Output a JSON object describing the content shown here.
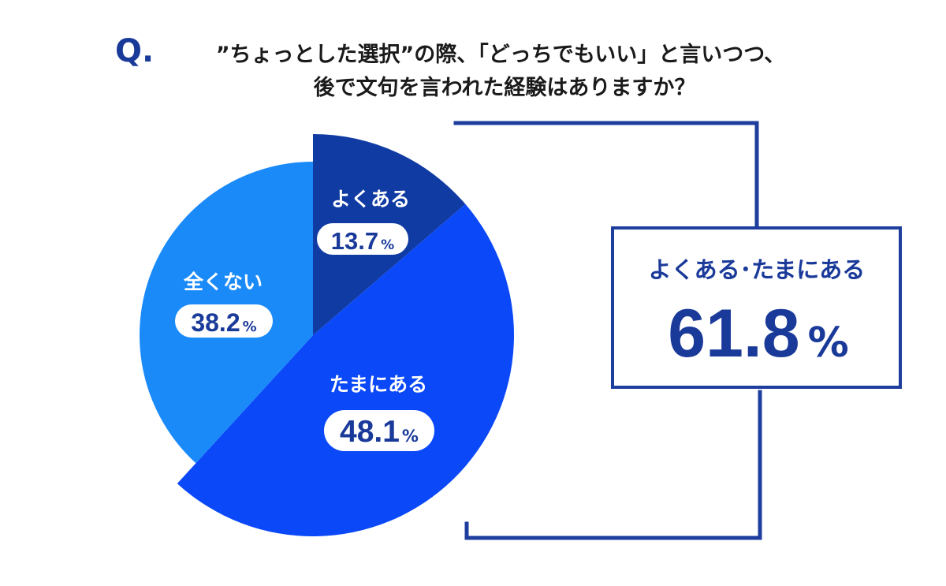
{
  "title": {
    "q_mark": "Q.",
    "line1": "”ちょっとした選択”の際、「どっちでもいい」と言いつつ、",
    "line2": "後で文句を言われた経験はありますか？"
  },
  "colors": {
    "dark": "#0F3BA3",
    "mid": "#0A48F8",
    "light": "#1B8AF9",
    "navy": "#1A3A9A",
    "frame": "#1E3E9E"
  },
  "chart_data": {
    "type": "pie",
    "title": "”ちょっとした選択”の際、「どっちでもいい」と言いつつ、後で文句を言われた経験はありますか？",
    "categories": [
      "よくある",
      "たまにある",
      "全くない"
    ],
    "values": [
      13.7,
      48.1,
      38.2
    ],
    "unit": "%",
    "summary": {
      "label": "よくある･たまにある",
      "value": 61.8,
      "value_text": "61.8",
      "unit": "%"
    }
  }
}
